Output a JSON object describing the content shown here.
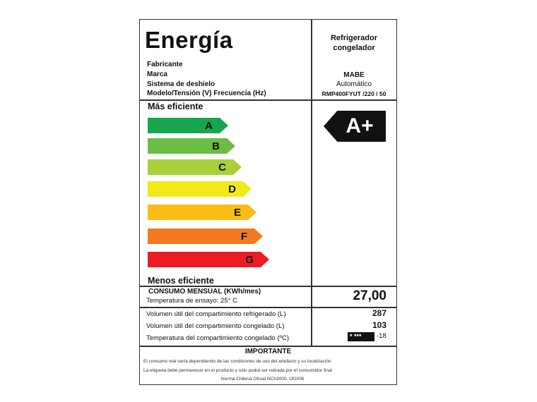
{
  "header": {
    "title": "Energía",
    "appliance_type": [
      "Refrigerador",
      "congelador"
    ]
  },
  "specs": [
    {
      "label": "Fabricante",
      "value": ""
    },
    {
      "label": "Marca",
      "value": "MABE"
    },
    {
      "label": "Sistema de deshielo",
      "value": "Automático"
    },
    {
      "label": "Modelo/Tensión (V) Frecuencia (Hz)",
      "value": "RMP400FYUT /220 / 50"
    }
  ],
  "scale": {
    "top_label": "Más eficiente",
    "bottom_label": "Menos eficiente",
    "classes": [
      {
        "letter": "A",
        "color": "#17a54f"
      },
      {
        "letter": "B",
        "color": "#6bbd45"
      },
      {
        "letter": "C",
        "color": "#a9d038"
      },
      {
        "letter": "D",
        "color": "#f1ea16"
      },
      {
        "letter": "E",
        "color": "#fbbc16"
      },
      {
        "letter": "F",
        "color": "#f37a20"
      },
      {
        "letter": "G",
        "color": "#ec1c24"
      }
    ],
    "rating": "A+"
  },
  "consumption": {
    "label": "CONSUMO MENSUAL (KWh/mes)",
    "test_temp": "Temperatura de ensayo: 25° C",
    "value": "27,00"
  },
  "volumes": [
    {
      "label": "Volumen útil del compartimiento refrigerado (L)",
      "value": "287"
    },
    {
      "label": "Volumen útil del compartimiento congelado (L)",
      "value": "103"
    },
    {
      "label": "Temperatura del compartimiento congelado (ºC)",
      "stars": "* ***",
      "value": "-18"
    }
  ],
  "important": {
    "title": "IMPORTANTE",
    "lines": [
      "El consumo real varía dependiendo de las condiciones de uso del artefacto y su localización",
      "La etiqueta debe permanecer en el  producto y sólo podrá ser retirada por el consumidor final",
      "Norma Chilena  Oficial NCh3000. Of2006"
    ]
  }
}
